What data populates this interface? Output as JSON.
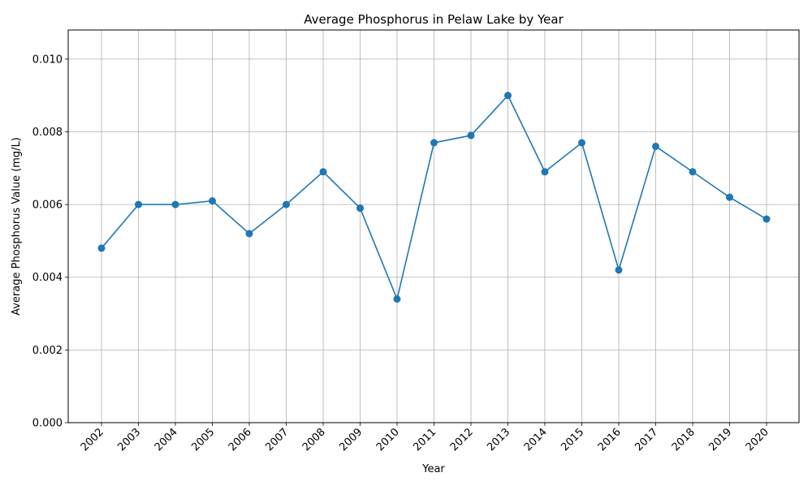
{
  "chart_data": {
    "type": "line",
    "title": "Average Phosphorus in Pelaw Lake by Year",
    "xlabel": "Year",
    "ylabel": "Average Phosphorus Value (mg/L)",
    "ylim": [
      0,
      0.0108
    ],
    "yticks": [
      "0.000",
      "0.002",
      "0.004",
      "0.006",
      "0.008",
      "0.010"
    ],
    "grid": true,
    "marker": "circle",
    "color": "#1f77b4",
    "categories": [
      "2002",
      "2003",
      "2004",
      "2005",
      "2006",
      "2007",
      "2008",
      "2009",
      "2010",
      "2011",
      "2012",
      "2013",
      "2014",
      "2015",
      "2016",
      "2017",
      "2018",
      "2019",
      "2020"
    ],
    "values": [
      0.0048,
      0.006,
      0.006,
      0.0061,
      0.0052,
      0.006,
      0.0069,
      0.0059,
      0.0034,
      0.0077,
      0.0079,
      0.009,
      0.0069,
      0.0077,
      0.0042,
      0.0076,
      0.0069,
      0.0062,
      0.0056
    ]
  }
}
